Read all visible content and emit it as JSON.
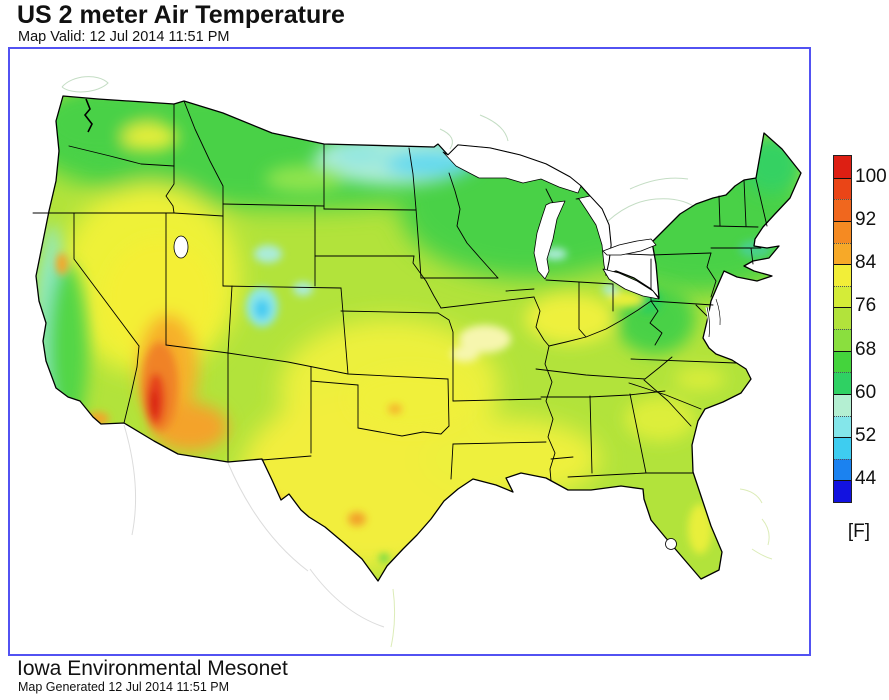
{
  "header": {
    "title": "US 2 meter Air Temperature",
    "valid_line": "Map Valid: 12 Jul 2014 11:51 PM"
  },
  "footer": {
    "organization": "Iowa Environmental Mesonet",
    "generated_line": "Map Generated 12 Jul 2014 11:51 PM"
  },
  "colorbar": {
    "unit_label": "[F]",
    "tick_labels": [
      "100",
      "92",
      "84",
      "76",
      "68",
      "60",
      "52",
      "44"
    ],
    "segments_top_to_bottom": [
      {
        "range_f": "100-104",
        "color": "#dd1f13"
      },
      {
        "range_f": "96-100",
        "color": "#ea4517"
      },
      {
        "range_f": "92-96",
        "color": "#f0671e"
      },
      {
        "range_f": "88-92",
        "color": "#f58a22"
      },
      {
        "range_f": "84-88",
        "color": "#f7a928"
      },
      {
        "range_f": "80-84",
        "color": "#f2ee38"
      },
      {
        "range_f": "76-80",
        "color": "#d4ec38"
      },
      {
        "range_f": "72-76",
        "color": "#b2e33b"
      },
      {
        "range_f": "68-72",
        "color": "#8adf3e"
      },
      {
        "range_f": "64-68",
        "color": "#44d43c"
      },
      {
        "range_f": "60-64",
        "color": "#2fd163"
      },
      {
        "range_f": "56-60",
        "color": "#b4efd2"
      },
      {
        "range_f": "52-56",
        "color": "#84e6ea"
      },
      {
        "range_f": "48-52",
        "color": "#3ecdf0"
      },
      {
        "range_f": "44-48",
        "color": "#1b82f0"
      },
      {
        "range_f": "40-44",
        "color": "#1212e0"
      }
    ]
  },
  "map": {
    "frame_border_color": "#5252f2",
    "visible_extent": "Contiguous United States",
    "hottest_shading": "orange-red ~96-104 F along CA/NV/AZ border",
    "coolest_shading": "cyan ~48-56 F in ND / northern MN and CO Rockies"
  }
}
